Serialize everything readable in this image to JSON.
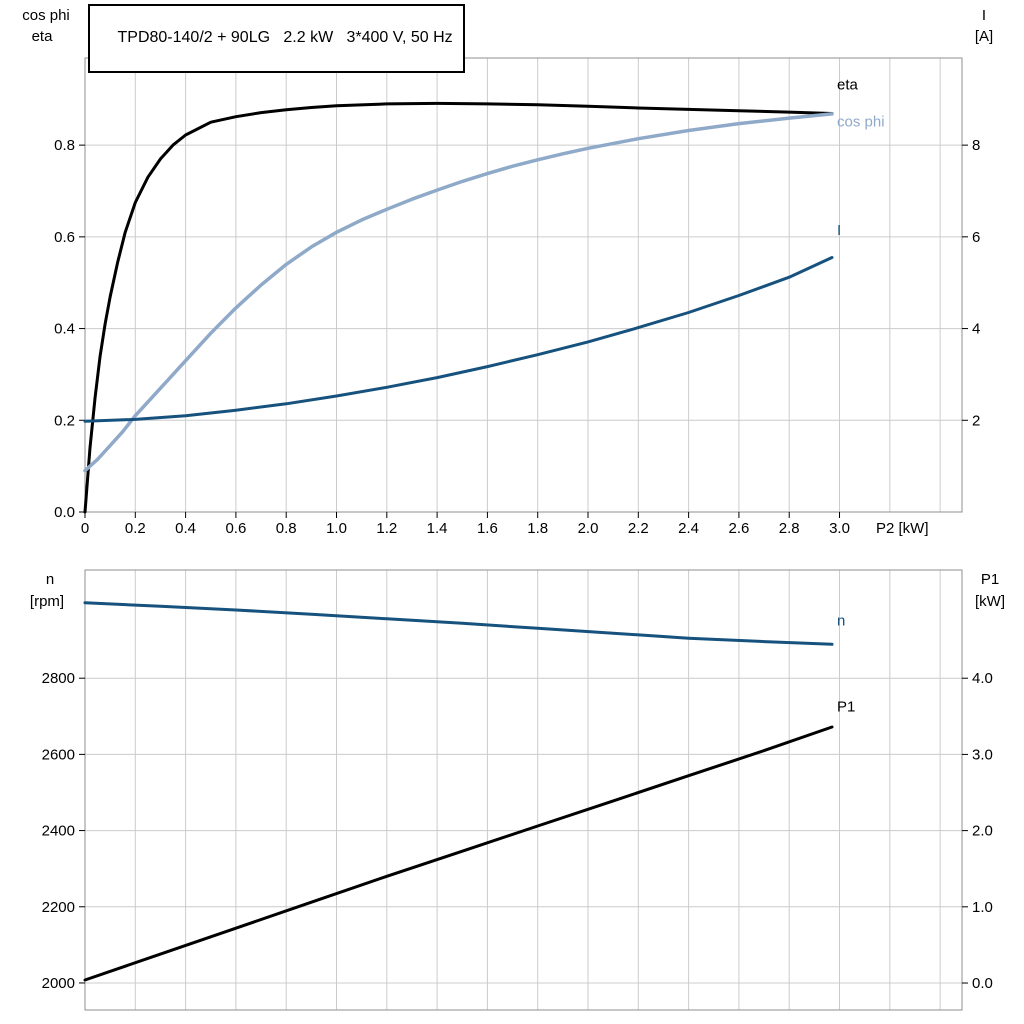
{
  "page": {
    "background": "#ffffff"
  },
  "title_box": {
    "text": "TPD80-140/2 + 90LG   2.2 kW   3*400 V, 50 Hz"
  },
  "axis_corner_labels": {
    "top_chart": {
      "left": [
        "cos phi",
        "eta"
      ],
      "right": [
        "I",
        "[A]"
      ],
      "x_axis": "P2 [kW]"
    },
    "bottom_chart": {
      "left": [
        "n",
        "[rpm]"
      ],
      "right": [
        "P1",
        "[kW]"
      ]
    }
  },
  "colors": {
    "grid": "#cccccc",
    "frame": "#8f8f8f",
    "tick": "#000000",
    "text": "#000000",
    "eta": "#000000",
    "cos_phi": "#8fa9c9",
    "current": "#16527d",
    "speed": "#16527d",
    "power": "#000000"
  },
  "chart_data": [
    {
      "type": "line",
      "title": "TPD80-140/2 + 90LG   2.2 kW   3*400 V, 50 Hz",
      "x_axis": {
        "label": "P2 [kW]",
        "lim": [
          0,
          3.487
        ],
        "grid_step": 0.2,
        "ticks": [
          0,
          0.2,
          0.4,
          0.6,
          0.8,
          1.0,
          1.2,
          1.4,
          1.6,
          1.8,
          2.0,
          2.2,
          2.4,
          2.6,
          2.8,
          3.0
        ],
        "tick_labels": [
          "0",
          "0.2",
          "0.4",
          "0.6",
          "0.8",
          "1.0",
          "1.2",
          "1.4",
          "1.6",
          "1.8",
          "2.0",
          "2.2",
          "2.4",
          "2.6",
          "2.8",
          "3.0"
        ]
      },
      "left_axis": {
        "label": "cos phi / eta",
        "lim": [
          0,
          0.99
        ],
        "ticks": [
          0,
          0.2,
          0.4,
          0.6,
          0.8
        ],
        "tick_labels": [
          "0.0",
          "0.2",
          "0.4",
          "0.6",
          "0.8"
        ]
      },
      "right_axis": {
        "label": "I [A]",
        "lim": [
          0,
          9.9
        ],
        "ticks": [
          2,
          4,
          6,
          8
        ],
        "tick_labels": [
          "2",
          "4",
          "6",
          "8"
        ]
      },
      "series": [
        {
          "name": "eta",
          "axis": "left",
          "color": "#000000",
          "width": 3,
          "label_at": [
            2.99,
            0.932
          ],
          "points": [
            [
              0,
              0
            ],
            [
              0.01,
              0.07
            ],
            [
              0.02,
              0.14
            ],
            [
              0.04,
              0.25
            ],
            [
              0.06,
              0.34
            ],
            [
              0.08,
              0.41
            ],
            [
              0.1,
              0.47
            ],
            [
              0.13,
              0.545
            ],
            [
              0.16,
              0.61
            ],
            [
              0.2,
              0.675
            ],
            [
              0.25,
              0.73
            ],
            [
              0.3,
              0.77
            ],
            [
              0.35,
              0.8
            ],
            [
              0.4,
              0.822
            ],
            [
              0.5,
              0.85
            ],
            [
              0.6,
              0.862
            ],
            [
              0.7,
              0.871
            ],
            [
              0.8,
              0.877
            ],
            [
              0.9,
              0.882
            ],
            [
              1.0,
              0.886
            ],
            [
              1.2,
              0.89
            ],
            [
              1.4,
              0.891
            ],
            [
              1.6,
              0.89
            ],
            [
              1.8,
              0.888
            ],
            [
              2.0,
              0.885
            ],
            [
              2.2,
              0.881
            ],
            [
              2.4,
              0.878
            ],
            [
              2.6,
              0.875
            ],
            [
              2.8,
              0.872
            ],
            [
              2.97,
              0.869
            ]
          ]
        },
        {
          "name": "cos phi",
          "axis": "left",
          "color": "#8fa9c9",
          "width": 3.5,
          "label_at": [
            2.99,
            0.852
          ],
          "points": [
            [
              0,
              0.09
            ],
            [
              0.05,
              0.115
            ],
            [
              0.1,
              0.145
            ],
            [
              0.15,
              0.175
            ],
            [
              0.2,
              0.21
            ],
            [
              0.3,
              0.27
            ],
            [
              0.4,
              0.33
            ],
            [
              0.5,
              0.39
            ],
            [
              0.6,
              0.445
            ],
            [
              0.7,
              0.495
            ],
            [
              0.8,
              0.54
            ],
            [
              0.9,
              0.578
            ],
            [
              1.0,
              0.61
            ],
            [
              1.1,
              0.637
            ],
            [
              1.2,
              0.66
            ],
            [
              1.3,
              0.682
            ],
            [
              1.4,
              0.702
            ],
            [
              1.5,
              0.721
            ],
            [
              1.6,
              0.738
            ],
            [
              1.7,
              0.754
            ],
            [
              1.8,
              0.768
            ],
            [
              1.9,
              0.781
            ],
            [
              2.0,
              0.793
            ],
            [
              2.2,
              0.814
            ],
            [
              2.4,
              0.832
            ],
            [
              2.6,
              0.847
            ],
            [
              2.8,
              0.859
            ],
            [
              2.97,
              0.868
            ]
          ]
        },
        {
          "name": "I",
          "axis": "right",
          "color": "#16527d",
          "width": 3,
          "label_at": [
            2.99,
            6.15
          ],
          "points": [
            [
              0,
              1.98
            ],
            [
              0.2,
              2.02
            ],
            [
              0.4,
              2.1
            ],
            [
              0.6,
              2.22
            ],
            [
              0.8,
              2.36
            ],
            [
              1.0,
              2.53
            ],
            [
              1.2,
              2.72
            ],
            [
              1.4,
              2.93
            ],
            [
              1.6,
              3.17
            ],
            [
              1.8,
              3.43
            ],
            [
              2.0,
              3.71
            ],
            [
              2.2,
              4.02
            ],
            [
              2.4,
              4.35
            ],
            [
              2.6,
              4.72
            ],
            [
              2.8,
              5.12
            ],
            [
              2.97,
              5.55
            ]
          ]
        }
      ]
    },
    {
      "type": "line",
      "title": "",
      "x_axis": {
        "label": "",
        "lim": [
          0,
          3.487
        ],
        "grid_step": 0.2,
        "ticks": [],
        "tick_labels": []
      },
      "left_axis": {
        "label": "n [rpm]",
        "lim": [
          1929,
          3084
        ],
        "ticks": [
          2000,
          2200,
          2400,
          2600,
          2800
        ],
        "tick_labels": [
          "2000",
          "2200",
          "2400",
          "2600",
          "2800"
        ]
      },
      "right_axis": {
        "label": "P1 [kW]",
        "lim": [
          -0.354,
          5.42
        ],
        "ticks": [
          0,
          1,
          2,
          3,
          4
        ],
        "tick_labels": [
          "0.0",
          "1.0",
          "2.0",
          "3.0",
          "4.0"
        ]
      },
      "series": [
        {
          "name": "n",
          "axis": "left",
          "color": "#16527d",
          "width": 3,
          "label_at": [
            2.99,
            2952
          ],
          "points": [
            [
              0,
              2998
            ],
            [
              0.3,
              2989
            ],
            [
              0.6,
              2979
            ],
            [
              0.9,
              2968
            ],
            [
              1.2,
              2956
            ],
            [
              1.5,
              2944
            ],
            [
              1.8,
              2931
            ],
            [
              2.1,
              2918
            ],
            [
              2.4,
              2905
            ],
            [
              2.7,
              2896
            ],
            [
              2.97,
              2889
            ]
          ]
        },
        {
          "name": "P1",
          "axis": "right",
          "color": "#000000",
          "width": 3,
          "label_at": [
            2.99,
            3.63
          ],
          "points": [
            [
              0,
              0.04
            ],
            [
              0.3,
              0.38
            ],
            [
              0.6,
              0.72
            ],
            [
              0.9,
              1.06
            ],
            [
              1.2,
              1.4
            ],
            [
              1.5,
              1.73
            ],
            [
              1.8,
              2.06
            ],
            [
              2.1,
              2.39
            ],
            [
              2.4,
              2.72
            ],
            [
              2.7,
              3.05
            ],
            [
              2.97,
              3.36
            ]
          ]
        }
      ]
    }
  ]
}
